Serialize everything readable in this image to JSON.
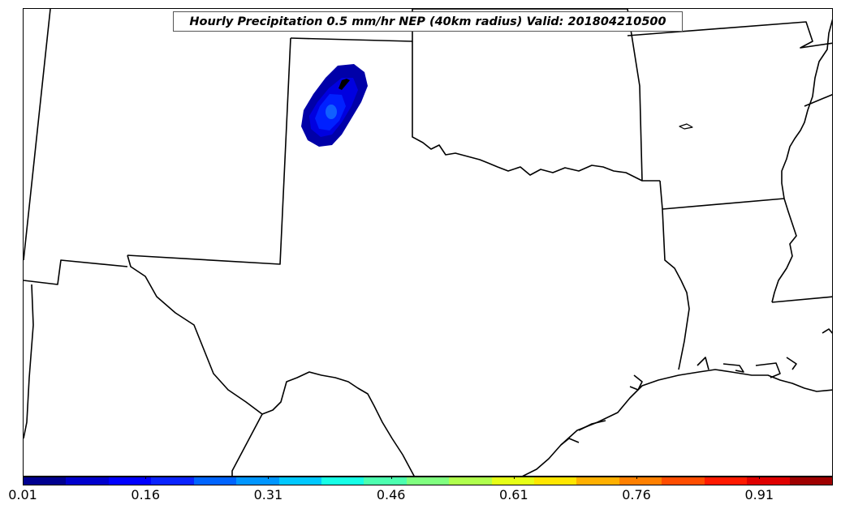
{
  "title": "Hourly Precipitation 0.5 mm/hr NEP (40km radius) Valid: 201804210500",
  "colorbar": {
    "min": 0.01,
    "max": 1.0,
    "tick_labels": [
      "0.01",
      "0.16",
      "0.31",
      "0.46",
      "0.61",
      "0.76",
      "0.91"
    ],
    "tick_values": [
      0.01,
      0.16,
      0.31,
      0.46,
      0.61,
      0.76,
      0.91
    ],
    "colors": [
      "#00008f",
      "#0000cd",
      "#0000ff",
      "#0a23ff",
      "#0064ff",
      "#0096ff",
      "#00c8ff",
      "#17ffe6",
      "#4dffb0",
      "#80ff80",
      "#b0ff4d",
      "#e6ff17",
      "#ffe600",
      "#ffb000",
      "#ff8000",
      "#ff4d00",
      "#ff1a00",
      "#df0000",
      "#9f0000"
    ]
  },
  "precip_blob": {
    "levels": [
      0.01,
      0.08,
      0.15,
      0.22
    ],
    "colors": [
      "#0000a8",
      "#0000e0",
      "#0020ff",
      "#1060ff"
    ]
  }
}
